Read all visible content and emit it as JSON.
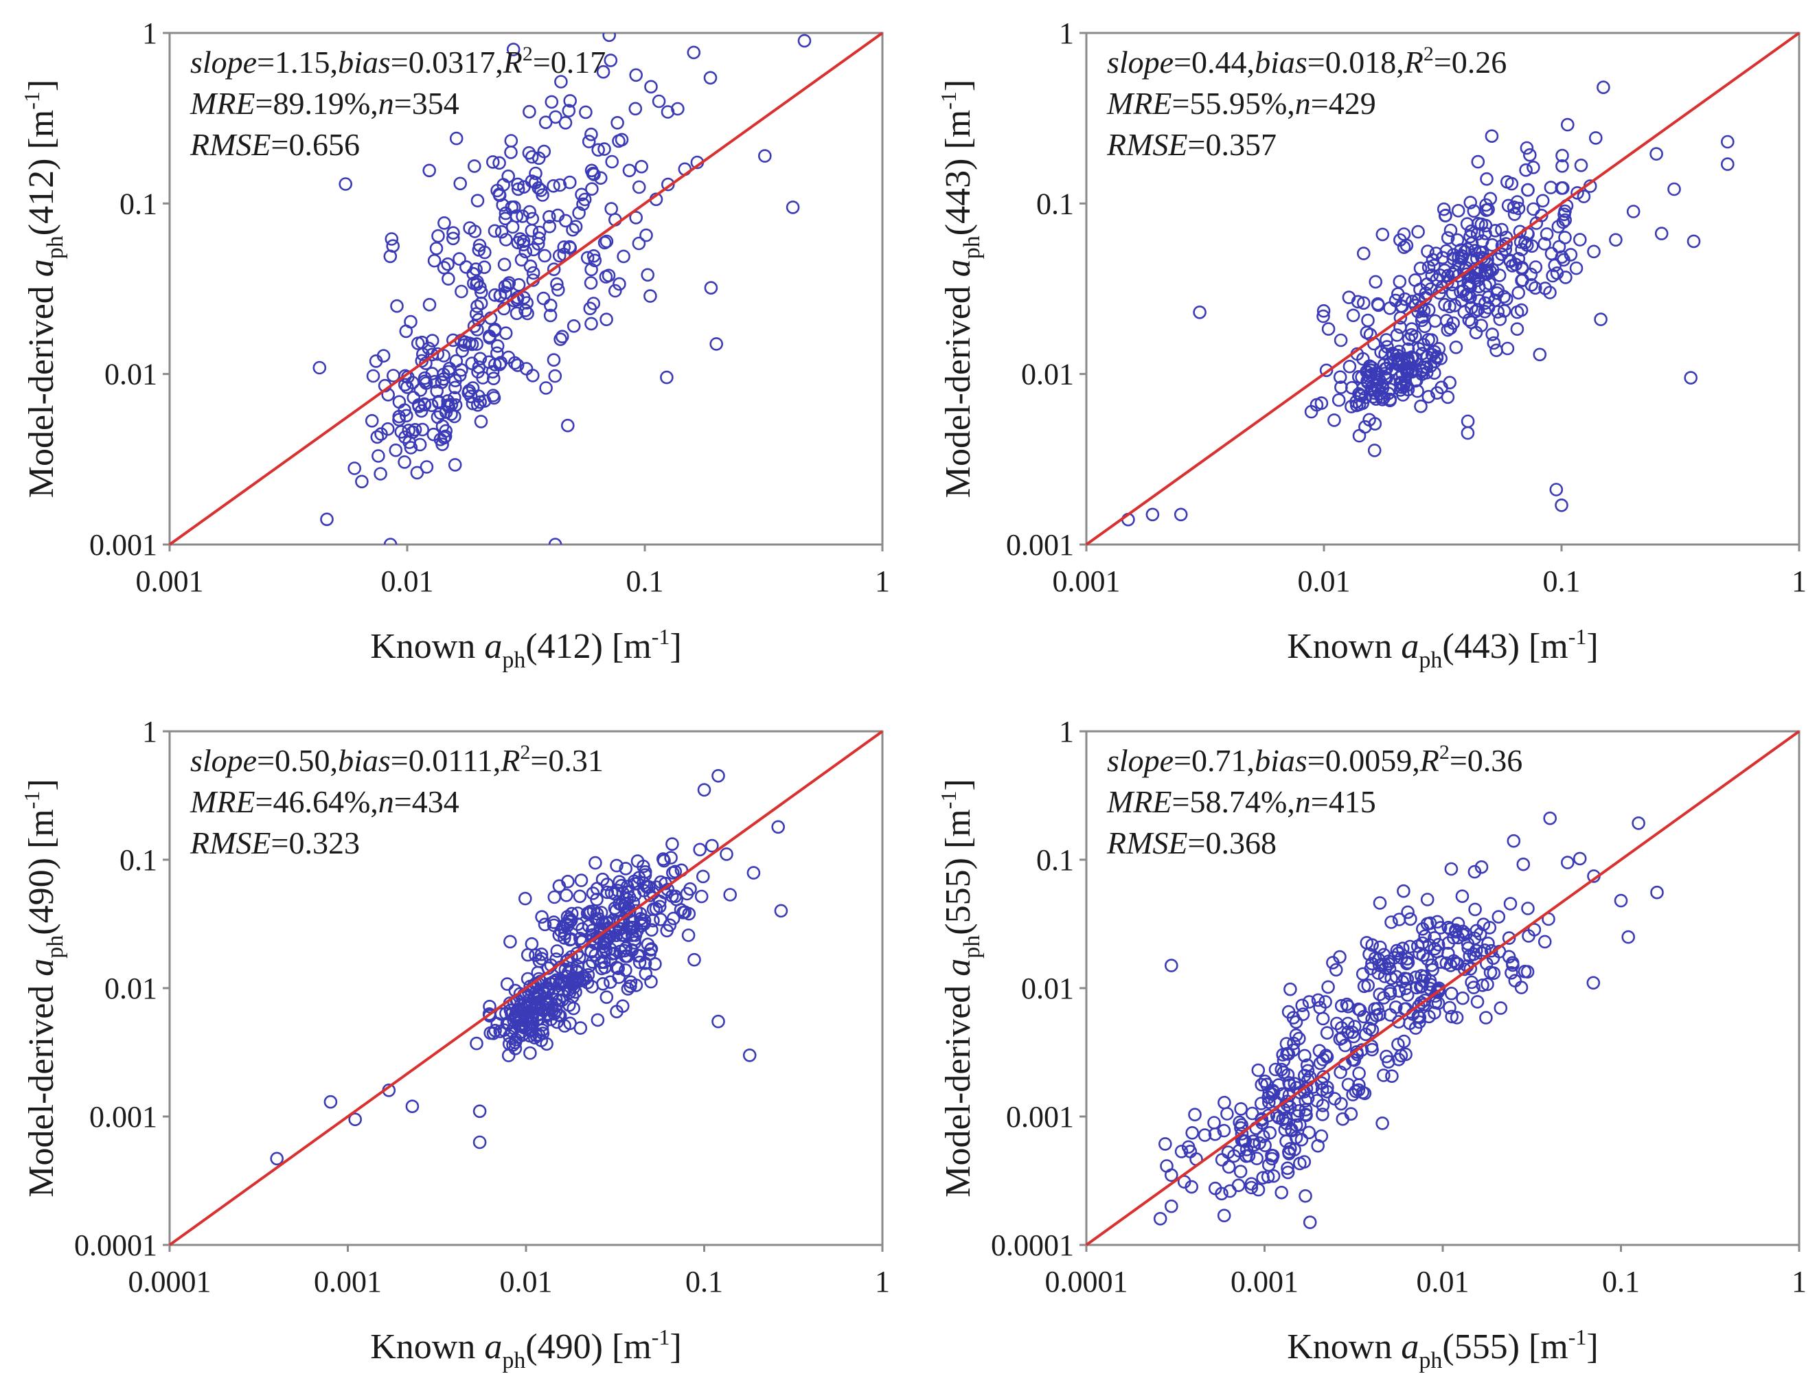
{
  "figure": {
    "colors": {
      "points": "#3b3bb8",
      "one_to_one_line": "#d93030",
      "frame": "#8a8a8a"
    }
  },
  "chart_data": [
    {
      "type": "scatter",
      "panel": "a_ph(412)",
      "scale": "log",
      "xlim": [
        0.001,
        1
      ],
      "ylim": [
        0.001,
        1
      ],
      "x_ticks": [
        "0.001",
        "0.01",
        "0.1",
        "1"
      ],
      "y_ticks": [
        "0.001",
        "0.01",
        "0.1",
        "1"
      ],
      "xlabel": {
        "prefix": "Known ",
        "var": "a",
        "sub": "ph",
        "band": "(412) [m",
        "sup": "-1",
        "suffix": "]"
      },
      "ylabel": {
        "prefix": "Model-derived ",
        "var": "a",
        "sub": "ph",
        "band": "(412) [m",
        "sup": "-1",
        "suffix": "]"
      },
      "stats": {
        "slope_label": "slope",
        "slope": "=1.15,",
        "bias_label": "bias",
        "bias": "=0.0317,",
        "r2_label": "R",
        "r2_sup": "2",
        "r2": "=0.17",
        "mre_label": "MRE",
        "mre": "=89.19%,",
        "n_label": "n",
        "n": "=354",
        "rmse_label": "RMSE",
        "rmse": "=0.656"
      },
      "n_points": 354,
      "seed": 412,
      "clusters": [
        {
          "x_center": 0.014,
          "x_spread": 0.15,
          "y_center": 0.007,
          "y_spread": 0.25,
          "weight": 0.3
        },
        {
          "x_center": 0.03,
          "x_spread": 0.3,
          "y_center": 0.05,
          "y_spread": 0.5,
          "weight": 0.7
        }
      ],
      "notable_points": [
        [
          0.47,
          0.9
        ],
        [
          0.028,
          0.8
        ],
        [
          0.42,
          0.095
        ],
        [
          0.32,
          0.19
        ],
        [
          0.2,
          0.015
        ],
        [
          0.19,
          0.032
        ],
        [
          0.0085,
          0.001
        ],
        [
          0.042,
          0.001
        ],
        [
          0.006,
          0.0028
        ],
        [
          0.0055,
          0.13
        ]
      ]
    },
    {
      "type": "scatter",
      "panel": "a_ph(443)",
      "scale": "log",
      "xlim": [
        0.001,
        1
      ],
      "ylim": [
        0.001,
        1
      ],
      "x_ticks": [
        "0.001",
        "0.01",
        "0.1",
        "1"
      ],
      "y_ticks": [
        "0.001",
        "0.01",
        "0.1",
        "1"
      ],
      "xlabel": {
        "prefix": "Known ",
        "var": "a",
        "sub": "ph",
        "band": "(443) [m",
        "sup": "-1",
        "suffix": "]"
      },
      "ylabel": {
        "prefix": "Model-derived ",
        "var": "a",
        "sub": "ph",
        "band": "(443) [m",
        "sup": "-1",
        "suffix": "]"
      },
      "stats": {
        "slope_label": "slope",
        "slope": "=0.44,",
        "bias_label": "bias",
        "bias": "=0.018,",
        "r2_label": "R",
        "r2_sup": "2",
        "r2": "=0.26",
        "mre_label": "MRE",
        "mre": "=55.95%,",
        "n_label": "n",
        "n": "=429",
        "rmse_label": "RMSE",
        "rmse": "=0.357"
      },
      "n_points": 429,
      "seed": 443,
      "clusters": [
        {
          "x_center": 0.018,
          "x_spread": 0.12,
          "y_center": 0.009,
          "y_spread": 0.12,
          "weight": 0.3
        },
        {
          "x_center": 0.045,
          "x_spread": 0.28,
          "y_center": 0.04,
          "y_spread": 0.35,
          "weight": 0.7
        }
      ],
      "notable_points": [
        [
          0.0015,
          0.0014
        ],
        [
          0.0019,
          0.0015
        ],
        [
          0.0025,
          0.0015
        ],
        [
          0.003,
          0.023
        ],
        [
          0.35,
          0.0095
        ],
        [
          0.36,
          0.06
        ],
        [
          0.5,
          0.17
        ],
        [
          0.5,
          0.23
        ],
        [
          0.15,
          0.48
        ],
        [
          0.1,
          0.0017
        ],
        [
          0.095,
          0.0021
        ]
      ]
    },
    {
      "type": "scatter",
      "panel": "a_ph(490)",
      "scale": "log",
      "xlim": [
        0.0001,
        1
      ],
      "ylim": [
        0.0001,
        1
      ],
      "x_ticks": [
        "0.0001",
        "0.001",
        "0.01",
        "0.1",
        "1"
      ],
      "y_ticks": [
        "0.0001",
        "0.001",
        "0.01",
        "0.1",
        "1"
      ],
      "xlabel": {
        "prefix": "Known ",
        "var": "a",
        "sub": "ph",
        "band": "(490) [m",
        "sup": "-1",
        "suffix": "]"
      },
      "ylabel": {
        "prefix": "Model-derived ",
        "var": "a",
        "sub": "ph",
        "band": "(490) [m",
        "sup": "-1",
        "suffix": "]"
      },
      "stats": {
        "slope_label": "slope",
        "slope": "=0.50,",
        "bias_label": "bias",
        "bias": "=0.0111,",
        "r2_label": "R",
        "r2_sup": "2",
        "r2": "=0.31",
        "mre_label": "MRE",
        "mre": "=46.64%,",
        "n_label": "n",
        "n": "=434",
        "rmse_label": "RMSE",
        "rmse": "=0.323"
      },
      "n_points": 434,
      "seed": 490,
      "clusters": [
        {
          "x_center": 0.011,
          "x_spread": 0.12,
          "y_center": 0.007,
          "y_spread": 0.15,
          "weight": 0.35
        },
        {
          "x_center": 0.03,
          "x_spread": 0.25,
          "y_center": 0.028,
          "y_spread": 0.3,
          "weight": 0.65
        }
      ],
      "notable_points": [
        [
          0.0004,
          0.00047
        ],
        [
          0.0008,
          0.0013
        ],
        [
          0.0011,
          0.00095
        ],
        [
          0.0017,
          0.0016
        ],
        [
          0.0023,
          0.0012
        ],
        [
          0.0055,
          0.00063
        ],
        [
          0.0055,
          0.0011
        ],
        [
          0.12,
          0.45
        ],
        [
          0.1,
          0.35
        ],
        [
          0.26,
          0.18
        ],
        [
          0.27,
          0.04
        ],
        [
          0.18,
          0.003
        ],
        [
          0.12,
          0.0055
        ]
      ]
    },
    {
      "type": "scatter",
      "panel": "a_ph(555)",
      "scale": "log",
      "xlim": [
        0.0001,
        1
      ],
      "ylim": [
        0.0001,
        1
      ],
      "x_ticks": [
        "0.0001",
        "0.001",
        "0.01",
        "0.1",
        "1"
      ],
      "y_ticks": [
        "0.0001",
        "0.001",
        "0.01",
        "0.1",
        "1"
      ],
      "xlabel": {
        "prefix": "Known ",
        "var": "a",
        "sub": "ph",
        "band": "(555) [m",
        "sup": "-1",
        "suffix": "]"
      },
      "ylabel": {
        "prefix": "Model-derived ",
        "var": "a",
        "sub": "ph",
        "band": "(555) [m",
        "sup": "-1",
        "suffix": "]"
      },
      "stats": {
        "slope_label": "slope",
        "slope": "=0.71,",
        "bias_label": "bias",
        "bias": "=0.0059,",
        "r2_label": "R",
        "r2_sup": "2",
        "r2": "=0.36",
        "mre_label": "MRE",
        "mre": "=58.74%,",
        "n_label": "n",
        "n": "=415",
        "rmse_label": "RMSE",
        "rmse": "=0.368"
      },
      "n_points": 415,
      "seed": 555,
      "clusters": [
        {
          "x_center": 0.0012,
          "x_spread": 0.25,
          "y_center": 0.0009,
          "y_spread": 0.3,
          "weight": 0.4
        },
        {
          "x_center": 0.008,
          "x_spread": 0.35,
          "y_center": 0.012,
          "y_spread": 0.35,
          "weight": 0.6
        }
      ],
      "notable_points": [
        [
          0.00026,
          0.00016
        ],
        [
          0.0003,
          0.0002
        ],
        [
          0.0003,
          0.00035
        ],
        [
          0.0003,
          0.015
        ],
        [
          0.0018,
          0.00015
        ],
        [
          0.11,
          0.025
        ],
        [
          0.1,
          0.048
        ],
        [
          0.07,
          0.011
        ],
        [
          0.04,
          0.21
        ],
        [
          0.025,
          0.14
        ]
      ]
    }
  ]
}
